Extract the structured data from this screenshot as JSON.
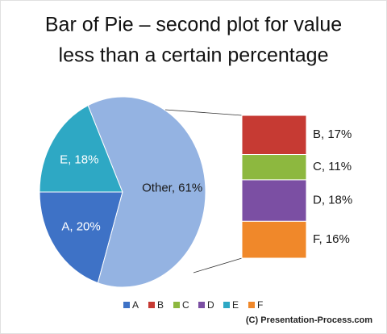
{
  "chart_data": {
    "type": "bar-of-pie",
    "title": [
      "Bar of Pie – second plot for value",
      "less than a certain percentage"
    ],
    "categories": [
      "A",
      "B",
      "C",
      "D",
      "E",
      "F"
    ],
    "values": [
      20,
      17,
      11,
      18,
      18,
      16
    ],
    "value_labels": [
      "A, 20%",
      "B, 17%",
      "C, 11%",
      "D, 18%",
      "E, 18%",
      "F, 16%"
    ],
    "colors": [
      "#3e72c6",
      "#c63a33",
      "#8db83f",
      "#7b4fa3",
      "#2ea8c4",
      "#f0882a"
    ],
    "plot": [
      "pie",
      "bar",
      "bar",
      "bar",
      "pie",
      "bar"
    ],
    "other_value": 61,
    "other_label": "Other, 61%",
    "other_color": "#94b3e2",
    "legend": "bottom",
    "credit": "(C) Presentation-Process.com"
  }
}
